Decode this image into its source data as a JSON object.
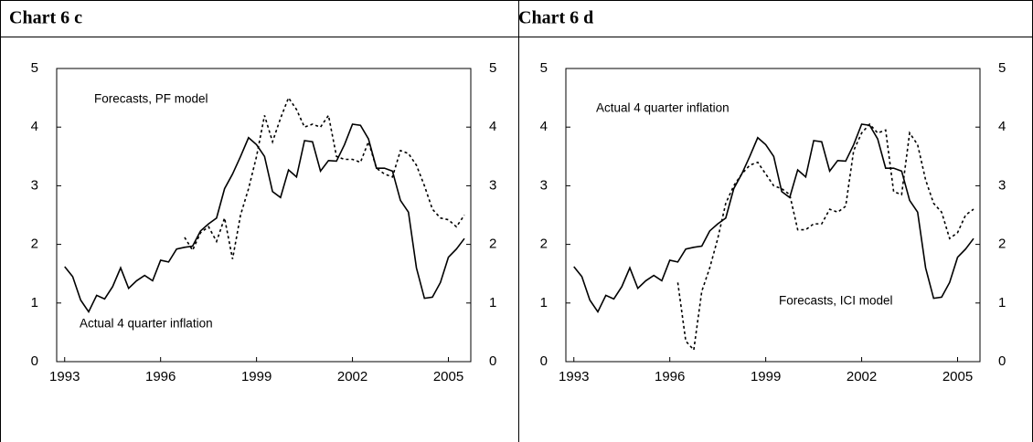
{
  "chart_data": [
    {
      "type": "line",
      "title": "Chart 6 c",
      "x": [
        1993,
        1993.25,
        1993.5,
        1993.75,
        1994,
        1994.25,
        1994.5,
        1994.75,
        1995,
        1995.25,
        1995.5,
        1995.75,
        1996,
        1996.25,
        1996.5,
        1996.75,
        1997,
        1997.25,
        1997.5,
        1997.75,
        1998,
        1998.25,
        1998.5,
        1998.75,
        1999,
        1999.25,
        1999.5,
        1999.75,
        2000,
        2000.25,
        2000.5,
        2000.75,
        2001,
        2001.25,
        2001.5,
        2001.75,
        2002,
        2002.25,
        2002.5,
        2002.75,
        2003,
        2003.25,
        2003.5,
        2003.75,
        2004,
        2004.25,
        2004.5,
        2004.75,
        2005,
        2005.25,
        2005.5
      ],
      "series": [
        {
          "name": "Actual 4 quarter inflation",
          "color": "#000000",
          "dashed": false,
          "values": [
            1.62,
            1.45,
            1.05,
            0.85,
            1.13,
            1.07,
            1.28,
            1.6,
            1.25,
            1.38,
            1.47,
            1.38,
            1.73,
            1.7,
            1.92,
            1.95,
            1.97,
            2.23,
            2.35,
            2.45,
            2.95,
            3.2,
            3.5,
            3.82,
            3.7,
            3.5,
            2.9,
            2.8,
            3.27,
            3.15,
            3.77,
            3.75,
            3.25,
            3.43,
            3.42,
            3.7,
            4.05,
            4.03,
            3.8,
            3.3,
            3.3,
            3.25,
            2.75,
            2.55,
            1.6,
            1.08,
            1.1,
            1.35,
            1.78,
            1.92,
            2.1
          ]
        },
        {
          "name": "Forecasts, PF model",
          "color": "#000000",
          "dashed": true,
          "values": [
            null,
            null,
            null,
            null,
            null,
            null,
            null,
            null,
            null,
            null,
            null,
            null,
            null,
            null,
            null,
            2.12,
            1.9,
            2.2,
            2.3,
            2.05,
            2.45,
            1.75,
            2.5,
            2.95,
            3.5,
            4.2,
            3.75,
            4.15,
            4.5,
            4.3,
            4.0,
            4.05,
            4.0,
            4.2,
            3.5,
            3.45,
            3.45,
            3.4,
            3.75,
            3.3,
            3.2,
            3.15,
            3.6,
            3.55,
            3.35,
            3.0,
            2.6,
            2.45,
            2.42,
            2.3,
            2.5
          ]
        }
      ],
      "xlim": [
        1992.75,
        2005.7
      ],
      "ylim": [
        0,
        5
      ],
      "xticks": [
        1993,
        1996,
        1999,
        2002,
        2005
      ],
      "yticks": [
        0,
        1,
        2,
        3,
        4,
        5
      ]
    },
    {
      "type": "line",
      "title": "Chart 6 d",
      "x": [
        1993,
        1993.25,
        1993.5,
        1993.75,
        1994,
        1994.25,
        1994.5,
        1994.75,
        1995,
        1995.25,
        1995.5,
        1995.75,
        1996,
        1996.25,
        1996.5,
        1996.75,
        1997,
        1997.25,
        1997.5,
        1997.75,
        1998,
        1998.25,
        1998.5,
        1998.75,
        1999,
        1999.25,
        1999.5,
        1999.75,
        2000,
        2000.25,
        2000.5,
        2000.75,
        2001,
        2001.25,
        2001.5,
        2001.75,
        2002,
        2002.25,
        2002.5,
        2002.75,
        2003,
        2003.25,
        2003.5,
        2003.75,
        2004,
        2004.25,
        2004.5,
        2004.75,
        2005,
        2005.25,
        2005.5
      ],
      "series": [
        {
          "name": "Actual 4 quarter inflation",
          "color": "#000000",
          "dashed": false,
          "values": [
            1.62,
            1.45,
            1.05,
            0.85,
            1.13,
            1.07,
            1.28,
            1.6,
            1.25,
            1.38,
            1.47,
            1.38,
            1.73,
            1.7,
            1.92,
            1.95,
            1.97,
            2.23,
            2.35,
            2.45,
            2.95,
            3.2,
            3.5,
            3.82,
            3.7,
            3.5,
            2.9,
            2.8,
            3.27,
            3.15,
            3.77,
            3.75,
            3.25,
            3.43,
            3.42,
            3.7,
            4.05,
            4.03,
            3.8,
            3.3,
            3.3,
            3.25,
            2.75,
            2.55,
            1.6,
            1.08,
            1.1,
            1.35,
            1.78,
            1.92,
            2.1
          ]
        },
        {
          "name": "Forecasts, ICI model",
          "color": "#000000",
          "dashed": true,
          "values": [
            null,
            null,
            null,
            null,
            null,
            null,
            null,
            null,
            null,
            null,
            null,
            null,
            null,
            1.35,
            0.35,
            0.2,
            1.2,
            1.6,
            2.1,
            2.7,
            3.0,
            3.2,
            3.35,
            3.4,
            3.2,
            3.0,
            2.95,
            2.85,
            2.25,
            2.25,
            2.35,
            2.35,
            2.6,
            2.55,
            2.65,
            3.6,
            3.9,
            4.05,
            3.9,
            3.95,
            2.9,
            2.85,
            3.9,
            3.7,
            3.1,
            2.7,
            2.55,
            2.1,
            2.2,
            2.5,
            2.6
          ]
        }
      ],
      "xlim": [
        1992.75,
        2005.7
      ],
      "ylim": [
        0,
        5
      ],
      "xticks": [
        1993,
        1996,
        1999,
        2002,
        2005
      ],
      "yticks": [
        0,
        1,
        2,
        3,
        4,
        5
      ]
    }
  ]
}
